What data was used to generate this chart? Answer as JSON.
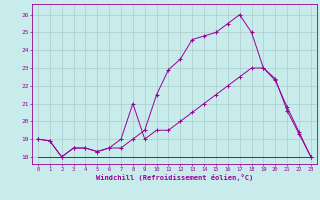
{
  "xlabel": "Windchill (Refroidissement éolien,°C)",
  "background_color": "#c8ecec",
  "line_color": "#990099",
  "grid_color": "#aacccc",
  "x_ticks": [
    0,
    1,
    2,
    3,
    4,
    5,
    6,
    7,
    8,
    9,
    10,
    11,
    12,
    13,
    14,
    15,
    16,
    17,
    18,
    19,
    20,
    21,
    22,
    23
  ],
  "y_ticks": [
    18,
    19,
    20,
    21,
    22,
    23,
    24,
    25,
    26
  ],
  "ylim": [
    17.6,
    26.6
  ],
  "xlim": [
    -0.5,
    23.5
  ],
  "series1_x": [
    0,
    1,
    2,
    3,
    4,
    5,
    6,
    7,
    8,
    9,
    10,
    11,
    12,
    13,
    14,
    15,
    16,
    17,
    18,
    19,
    20,
    21,
    22,
    23
  ],
  "series1_y": [
    19.0,
    18.9,
    18.0,
    18.5,
    18.5,
    18.3,
    18.5,
    18.5,
    19.0,
    19.5,
    21.5,
    22.9,
    23.5,
    24.6,
    24.8,
    25.0,
    25.5,
    26.0,
    25.0,
    23.0,
    22.4,
    20.6,
    19.3,
    18.0
  ],
  "series2_x": [
    0,
    1,
    2,
    3,
    4,
    5,
    6,
    7,
    8,
    9,
    10,
    11,
    12,
    13,
    14,
    15,
    16,
    17,
    18,
    19,
    20,
    21,
    22,
    23
  ],
  "series2_y": [
    19.0,
    18.9,
    18.0,
    18.5,
    18.5,
    18.3,
    18.5,
    19.0,
    21.0,
    19.0,
    19.5,
    19.5,
    20.0,
    20.5,
    21.0,
    21.5,
    22.0,
    22.5,
    23.0,
    23.0,
    22.3,
    20.8,
    19.4,
    18.0
  ],
  "series3_x": [
    0,
    1,
    2,
    3,
    4,
    5,
    6,
    7,
    8,
    9,
    10,
    11,
    12,
    13,
    14,
    15,
    16,
    17,
    18,
    19,
    20,
    21,
    22,
    23
  ],
  "series3_y": [
    18.0,
    18.0,
    18.0,
    18.0,
    18.0,
    18.0,
    18.0,
    18.0,
    18.0,
    18.0,
    18.0,
    18.0,
    18.0,
    18.0,
    18.0,
    18.0,
    18.0,
    18.0,
    18.0,
    18.0,
    18.0,
    18.0,
    18.0,
    18.0
  ]
}
